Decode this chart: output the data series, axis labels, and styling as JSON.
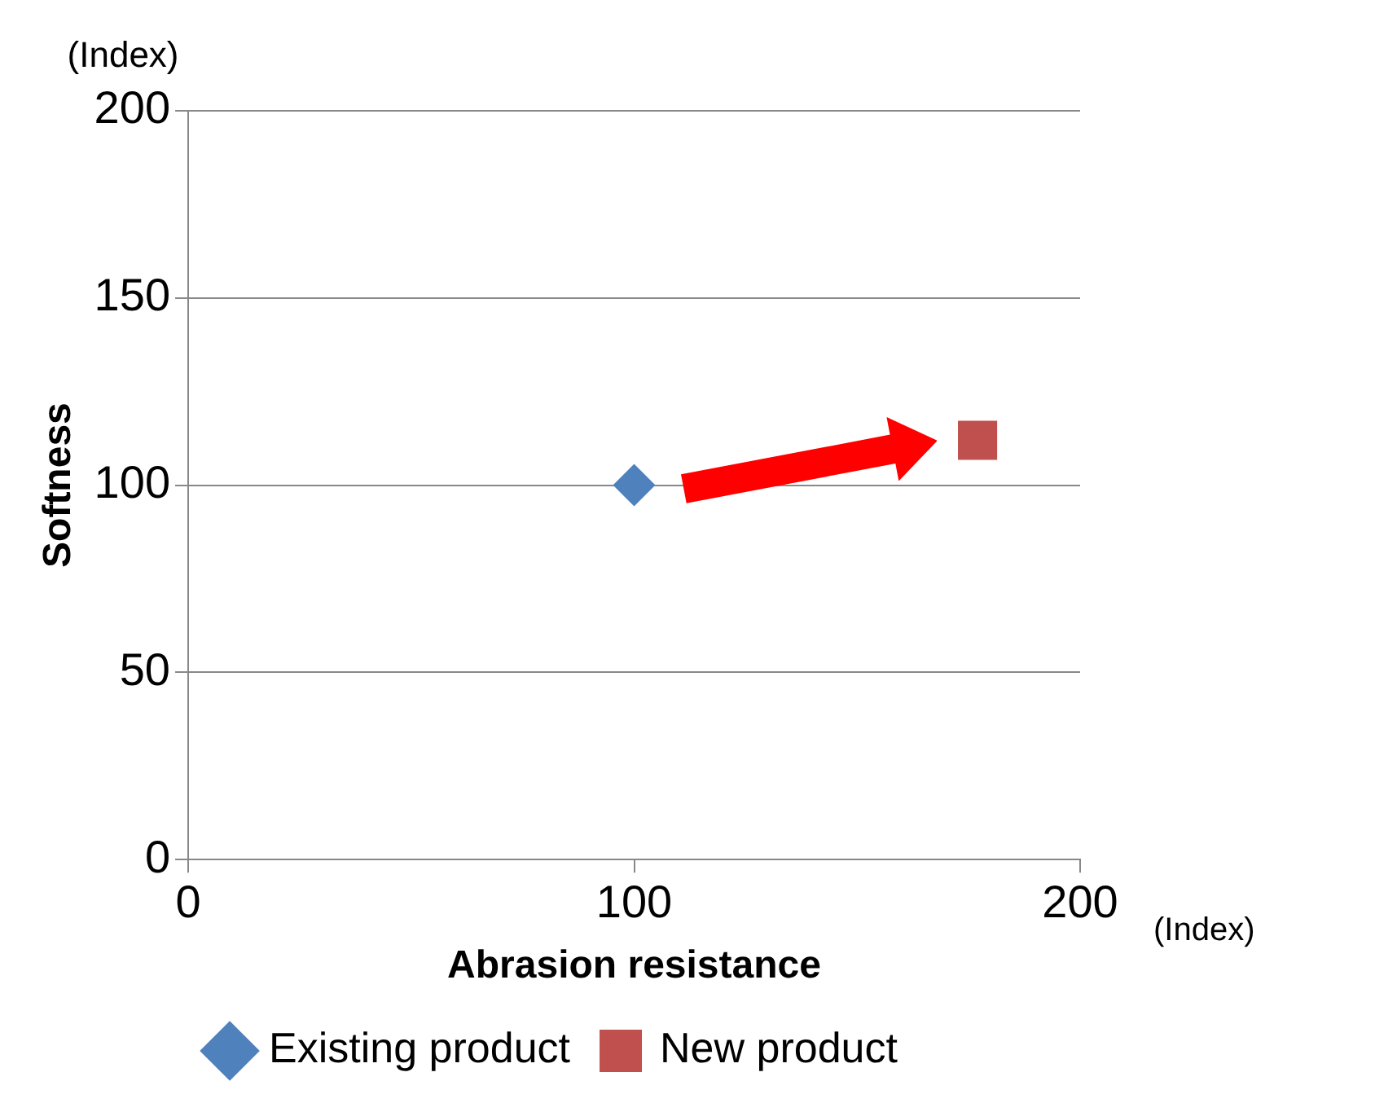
{
  "chart_data": {
    "type": "scatter",
    "xlabel": "Abrasion resistance",
    "ylabel": "Softness",
    "annotations": [
      "(Index)",
      "(Index)"
    ],
    "xlim": [
      0,
      200
    ],
    "xticks": [
      0,
      100,
      200
    ],
    "ylim": [
      0,
      200
    ],
    "yticks": [
      0,
      50,
      100,
      150,
      200
    ],
    "grid": "y",
    "legend": "bottom",
    "series": [
      {
        "name": "Existing product",
        "color": "#4f81bd",
        "marker": "diamond",
        "x": [
          100
        ],
        "values": [
          100
        ]
      },
      {
        "name": "New product",
        "color": "#c0504d",
        "marker": "square",
        "x": [
          177
        ],
        "values": [
          112
        ]
      }
    ]
  }
}
